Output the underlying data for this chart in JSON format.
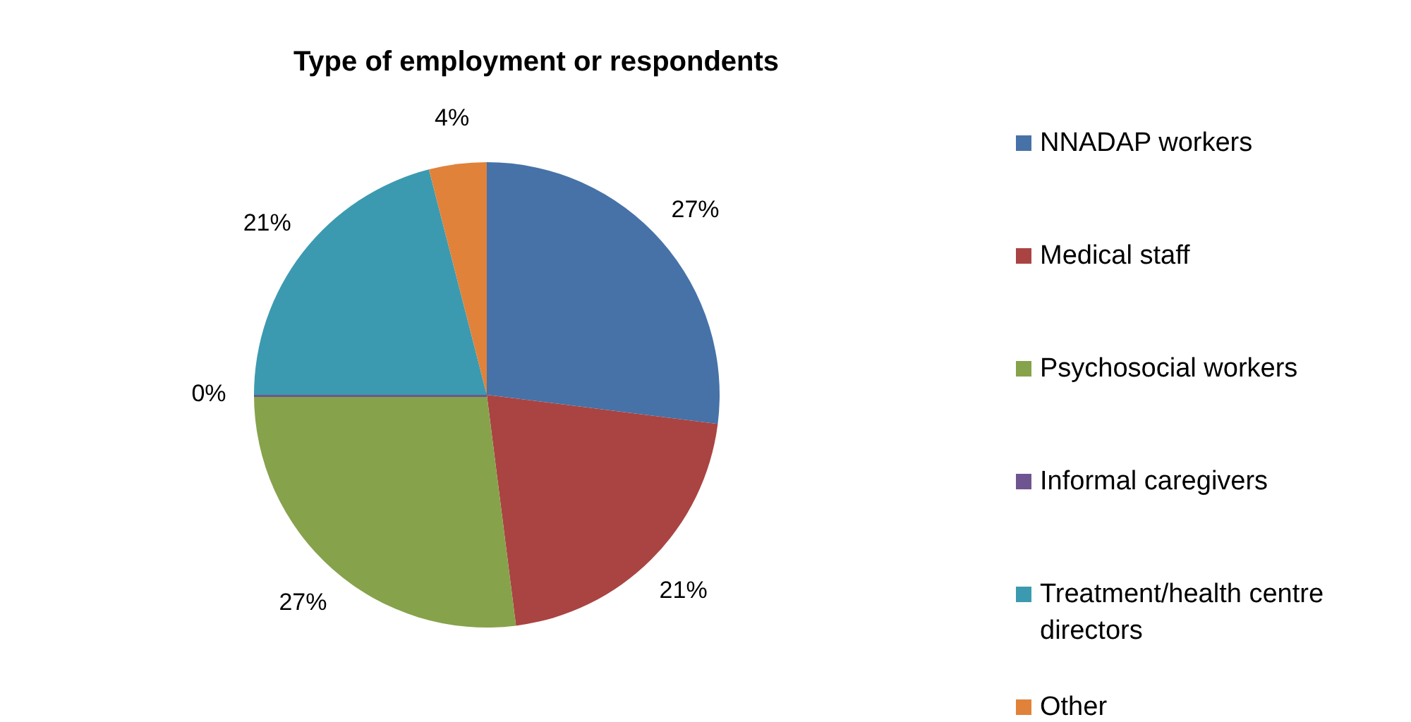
{
  "chart_data": {
    "type": "pie",
    "title": "Type of employment or respondents",
    "categories": [
      "NNADAP workers",
      "Medical staff",
      "Psychosocial workers",
      "Informal caregivers",
      "Treatment/health centre directors",
      "Other"
    ],
    "values": [
      27,
      21,
      27,
      0,
      21,
      4
    ],
    "colors": [
      "#4672a8",
      "#a94442",
      "#86a24b",
      "#6f5590",
      "#3b9ab0",
      "#e0823a"
    ],
    "value_labels": [
      "27%",
      "21%",
      "27%",
      "0%",
      "21%",
      "4%"
    ],
    "legend": "right"
  }
}
